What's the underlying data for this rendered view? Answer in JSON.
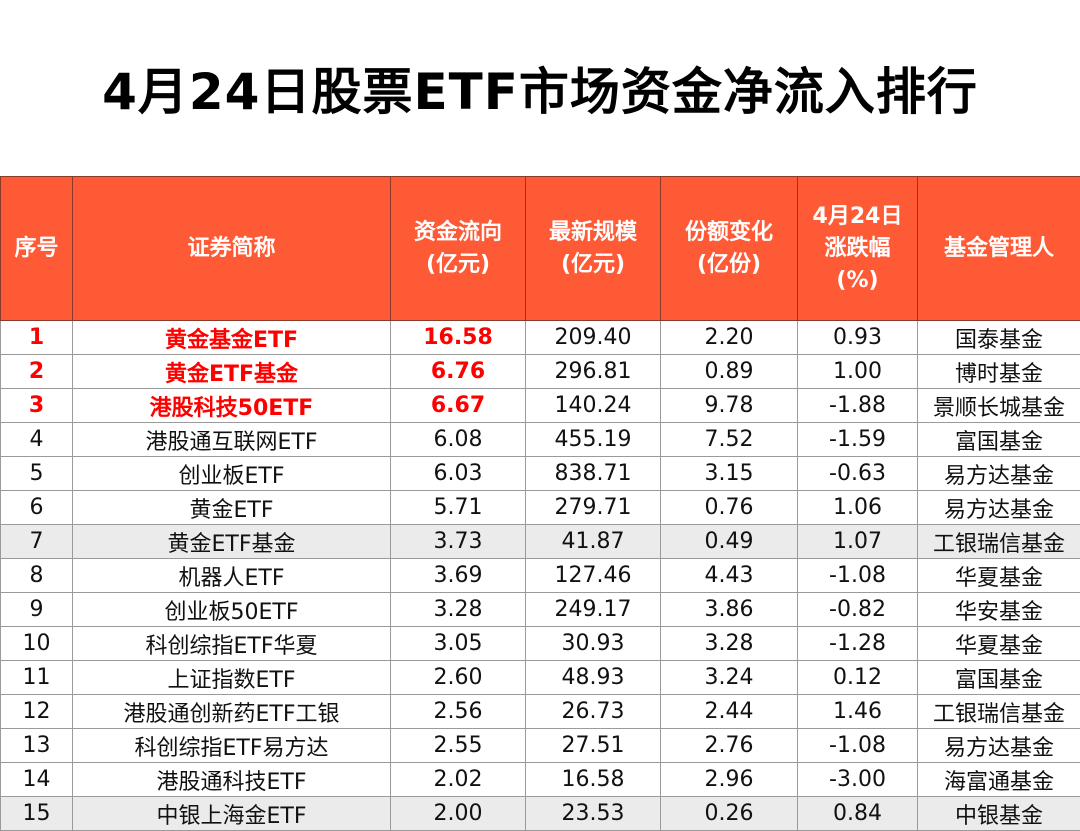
{
  "title": "4月24日股票ETF市场资金净流入排行",
  "headers": [
    "序号",
    "证券简称",
    "资金流向\n(亿元)",
    "最新规模\n(亿元)",
    "份额变化\n(亿份)",
    "4月24日\n涨跌幅\n(%)",
    "基金管理人"
  ],
  "highlight_color": "#ff0000",
  "header_color": "#ff5a36",
  "rows": [
    [
      "1",
      "黄金基金ETF",
      "16.58",
      "209.40",
      "2.20",
      "0.93",
      "国泰基金"
    ],
    [
      "2",
      "黄金ETF基金",
      "6.76",
      "296.81",
      "0.89",
      "1.00",
      "博时基金"
    ],
    [
      "3",
      "港股科技50ETF",
      "6.67",
      "140.24",
      "9.78",
      "-1.88",
      "景顺长城基金"
    ],
    [
      "4",
      "港股通互联网ETF",
      "6.08",
      "455.19",
      "7.52",
      "-1.59",
      "富国基金"
    ],
    [
      "5",
      "创业板ETF",
      "6.03",
      "838.71",
      "3.15",
      "-0.63",
      "易方达基金"
    ],
    [
      "6",
      "黄金ETF",
      "5.71",
      "279.71",
      "0.76",
      "1.06",
      "易方达基金"
    ],
    [
      "7",
      "黄金ETF基金",
      "3.73",
      "41.87",
      "0.49",
      "1.07",
      "工银瑞信基金"
    ],
    [
      "8",
      "机器人ETF",
      "3.69",
      "127.46",
      "4.43",
      "-1.08",
      "华夏基金"
    ],
    [
      "9",
      "创业板50ETF",
      "3.28",
      "249.17",
      "3.86",
      "-0.82",
      "华安基金"
    ],
    [
      "10",
      "科创综指ETF华夏",
      "3.05",
      "30.93",
      "3.28",
      "-1.28",
      "华夏基金"
    ],
    [
      "11",
      "上证指数ETF",
      "2.60",
      "48.93",
      "3.24",
      "0.12",
      "富国基金"
    ],
    [
      "12",
      "港股通创新药ETF工银",
      "2.56",
      "26.73",
      "2.44",
      "1.46",
      "工银瑞信基金"
    ],
    [
      "13",
      "科创综指ETF易方达",
      "2.55",
      "27.51",
      "2.76",
      "-1.08",
      "易方达基金"
    ],
    [
      "14",
      "港股通科技ETF",
      "2.02",
      "16.58",
      "2.96",
      "-3.00",
      "海富通基金"
    ],
    [
      "15",
      "中银上海金ETF",
      "2.00",
      "23.53",
      "0.26",
      "0.84",
      "中银基金"
    ]
  ]
}
